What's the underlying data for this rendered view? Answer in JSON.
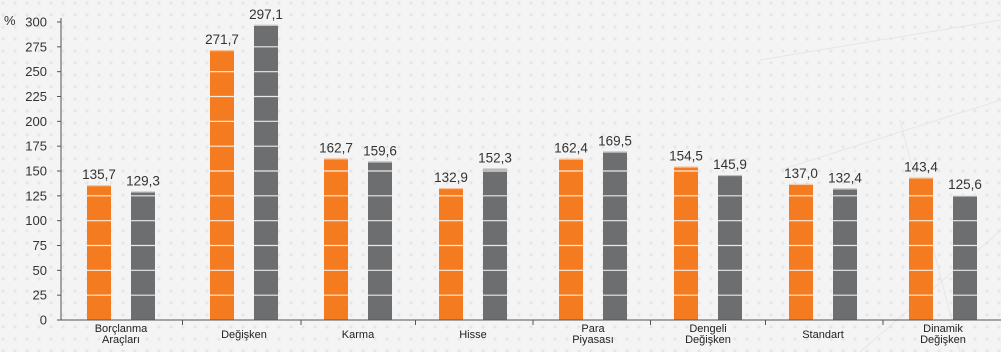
{
  "chart_data": {
    "type": "bar",
    "ylabel": "%",
    "ylim": [
      0,
      300
    ],
    "yticks": [
      0,
      25,
      50,
      75,
      100,
      125,
      150,
      175,
      200,
      225,
      250,
      275,
      300
    ],
    "ytick_labels": [
      "0",
      "25",
      "50",
      "75",
      "100",
      "125",
      "150",
      "175",
      "200",
      "225",
      "250",
      "275",
      "300"
    ],
    "grid": "horizontal white lines across bars",
    "legend": "none",
    "categories": [
      [
        "Borçlanma",
        "Araçları"
      ],
      [
        "Değişken"
      ],
      [
        "Karma"
      ],
      [
        "Hisse"
      ],
      [
        "Para",
        "Piyasası"
      ],
      [
        "Dengeli",
        "Değişken"
      ],
      [
        "Standart"
      ],
      [
        "Dinamik",
        "Değişken"
      ]
    ],
    "series": [
      {
        "color": "#f47b20",
        "values": [
          135.7,
          271.7,
          162.7,
          132.9,
          162.4,
          154.5,
          137.0,
          143.4
        ],
        "labels": [
          "135,7",
          "271,7",
          "162,7",
          "132,9",
          "162,4",
          "154,5",
          "137,0",
          "143,4"
        ]
      },
      {
        "color": "#6d6e70",
        "values": [
          129.3,
          297.1,
          159.6,
          152.3,
          169.5,
          145.9,
          132.4,
          125.6
        ],
        "labels": [
          "129,3",
          "297,1",
          "159,6",
          "152,3",
          "169,5",
          "145,9",
          "132,4",
          "125,6"
        ]
      }
    ]
  }
}
